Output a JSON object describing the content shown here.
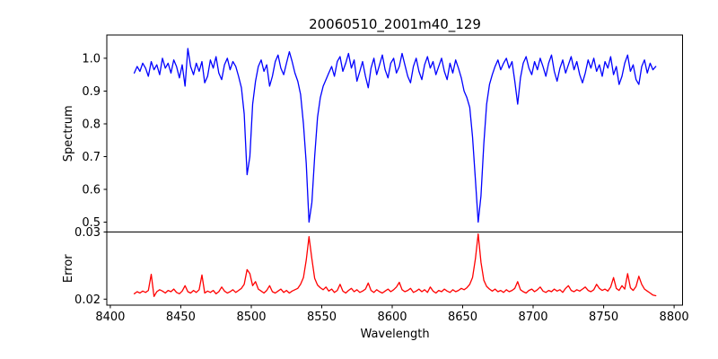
{
  "title": "20060510_2001m40_129",
  "colors": {
    "background": "#ffffff",
    "axis": "#000000",
    "spectrum_line": "#0000ff",
    "error_line": "#ff0000"
  },
  "chart_data": {
    "type": "line",
    "title": "20060510_2001m40_129",
    "xlabel": "Wavelength",
    "grid": false,
    "legend": "none",
    "xlim": [
      8397.5,
      8806
    ],
    "xticks": [
      8400,
      8450,
      8500,
      8550,
      8600,
      8650,
      8700,
      8750,
      8800
    ],
    "x_start": 8417,
    "x_step": 2,
    "panels": [
      {
        "name": "spectrum",
        "ylabel": "Spectrum",
        "line_color": "#0000ff",
        "ylim": [
          0.47,
          1.071
        ],
        "yticks": [
          1.0,
          0.9,
          0.8,
          0.7,
          0.6,
          0.5
        ],
        "ytick_labels": [
          "1.0",
          "0.9",
          "0.8",
          "0.7",
          "0.6",
          "0.5"
        ],
        "absorption_line_centers": [
          8498,
          8542,
          8662
        ],
        "values": [
          0.955,
          0.975,
          0.96,
          0.985,
          0.97,
          0.945,
          0.99,
          0.965,
          0.98,
          0.95,
          1.0,
          0.97,
          0.985,
          0.955,
          0.995,
          0.975,
          0.94,
          0.98,
          0.915,
          1.03,
          0.975,
          0.95,
          0.985,
          0.96,
          0.99,
          0.925,
          0.945,
          0.995,
          0.97,
          1.005,
          0.955,
          0.935,
          0.98,
          1.0,
          0.965,
          0.99,
          0.975,
          0.945,
          0.91,
          0.83,
          0.645,
          0.7,
          0.86,
          0.93,
          0.975,
          0.995,
          0.96,
          0.98,
          0.915,
          0.945,
          0.99,
          1.01,
          0.97,
          0.95,
          0.985,
          1.02,
          0.99,
          0.955,
          0.93,
          0.89,
          0.8,
          0.68,
          0.5,
          0.56,
          0.7,
          0.82,
          0.88,
          0.915,
          0.935,
          0.955,
          0.975,
          0.945,
          0.99,
          1.005,
          0.96,
          0.985,
          1.015,
          0.97,
          0.995,
          0.93,
          0.96,
          0.99,
          0.945,
          0.91,
          0.97,
          1.0,
          0.95,
          0.98,
          1.01,
          0.965,
          0.94,
          0.985,
          1.0,
          0.955,
          0.975,
          1.015,
          0.98,
          0.945,
          0.925,
          0.975,
          1.0,
          0.96,
          0.935,
          0.98,
          1.005,
          0.97,
          0.99,
          0.95,
          0.975,
          1.0,
          0.96,
          0.935,
          0.985,
          0.955,
          0.995,
          0.97,
          0.94,
          0.9,
          0.88,
          0.85,
          0.76,
          0.63,
          0.5,
          0.58,
          0.74,
          0.86,
          0.92,
          0.95,
          0.975,
          0.995,
          0.965,
          0.985,
          1.0,
          0.97,
          0.99,
          0.93,
          0.86,
          0.94,
          0.985,
          1.005,
          0.97,
          0.95,
          0.99,
          0.965,
          1.0,
          0.975,
          0.945,
          0.985,
          1.01,
          0.96,
          0.93,
          0.97,
          0.995,
          0.955,
          0.98,
          1.005,
          0.965,
          0.99,
          0.95,
          0.925,
          0.955,
          0.995,
          0.97,
          1.0,
          0.96,
          0.98,
          0.945,
          0.99,
          0.97,
          1.005,
          0.95,
          0.975,
          0.92,
          0.945,
          0.985,
          1.01,
          0.96,
          0.98,
          0.935,
          0.92,
          0.975,
          0.995,
          0.955,
          0.985,
          0.965,
          0.975
        ]
      },
      {
        "name": "error",
        "ylabel": "Error",
        "line_color": "#ff0000",
        "ylim": [
          0.0191,
          0.03
        ],
        "yticks": [
          0.03,
          0.02
        ],
        "ytick_labels": [
          "0.03",
          "0.02"
        ],
        "values": [
          0.0208,
          0.0211,
          0.0209,
          0.0212,
          0.021,
          0.0213,
          0.0237,
          0.0204,
          0.0211,
          0.0214,
          0.0212,
          0.0209,
          0.0213,
          0.0211,
          0.0215,
          0.021,
          0.0208,
          0.0212,
          0.022,
          0.0211,
          0.0209,
          0.0213,
          0.021,
          0.0214,
          0.0236,
          0.0209,
          0.0212,
          0.021,
          0.0213,
          0.0208,
          0.0211,
          0.0218,
          0.0212,
          0.0209,
          0.0211,
          0.0214,
          0.021,
          0.0213,
          0.0216,
          0.0222,
          0.0244,
          0.0238,
          0.022,
          0.0226,
          0.0215,
          0.0212,
          0.0209,
          0.0213,
          0.022,
          0.0211,
          0.0209,
          0.0212,
          0.0215,
          0.021,
          0.0213,
          0.0209,
          0.0212,
          0.0214,
          0.0216,
          0.0222,
          0.0232,
          0.0258,
          0.0293,
          0.026,
          0.0231,
          0.0221,
          0.0217,
          0.0214,
          0.0218,
          0.0212,
          0.0215,
          0.021,
          0.0213,
          0.0222,
          0.0212,
          0.0209,
          0.0213,
          0.0216,
          0.0211,
          0.0214,
          0.021,
          0.0212,
          0.0215,
          0.0224,
          0.0213,
          0.021,
          0.0214,
          0.0211,
          0.0209,
          0.0212,
          0.0215,
          0.0211,
          0.0214,
          0.0218,
          0.0225,
          0.0214,
          0.0211,
          0.0213,
          0.0216,
          0.021,
          0.0212,
          0.0215,
          0.0211,
          0.0214,
          0.021,
          0.0218,
          0.0212,
          0.0209,
          0.0213,
          0.0211,
          0.0215,
          0.0212,
          0.021,
          0.0214,
          0.0211,
          0.0213,
          0.0216,
          0.0214,
          0.0217,
          0.0222,
          0.0232,
          0.026,
          0.0297,
          0.0255,
          0.0228,
          0.0219,
          0.0215,
          0.0212,
          0.0215,
          0.0211,
          0.0213,
          0.021,
          0.0214,
          0.0211,
          0.0213,
          0.0216,
          0.0226,
          0.0214,
          0.0211,
          0.0209,
          0.0213,
          0.0215,
          0.0211,
          0.0214,
          0.0218,
          0.0212,
          0.021,
          0.0213,
          0.0211,
          0.0215,
          0.0212,
          0.0214,
          0.021,
          0.0216,
          0.022,
          0.0213,
          0.0211,
          0.0214,
          0.0212,
          0.0215,
          0.0218,
          0.0213,
          0.0211,
          0.0214,
          0.0222,
          0.0216,
          0.0213,
          0.0215,
          0.0212,
          0.0218,
          0.0232,
          0.0216,
          0.0213,
          0.022,
          0.0215,
          0.0238,
          0.0217,
          0.0213,
          0.0219,
          0.0234,
          0.0222,
          0.0215,
          0.0212,
          0.0209,
          0.0206,
          0.0205
        ]
      }
    ]
  }
}
